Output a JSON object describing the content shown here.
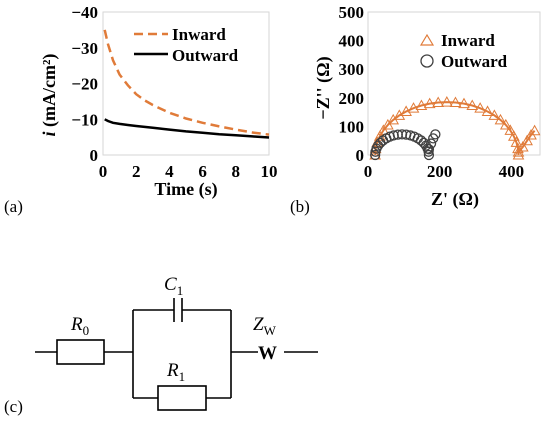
{
  "panels": {
    "a": "(a)",
    "b": "(b)",
    "c": "(c)"
  },
  "chart_data": [
    {
      "type": "line",
      "xlabel": "Time (s)",
      "ylabel_main": "i",
      "ylabel_unit": "(mA/cm²)",
      "xlim": [
        0,
        10
      ],
      "ylim": [
        0,
        -40
      ],
      "y_reversed": true,
      "x_ticks": [
        0,
        2,
        4,
        6,
        8,
        10
      ],
      "y_ticks": [
        -40,
        -30,
        -20,
        -10,
        0
      ],
      "y_tick_labels": [
        "−40",
        "−30",
        "−20",
        "−10",
        "0"
      ],
      "grid": false,
      "legend": "top-right",
      "series": [
        {
          "name": "Inward",
          "color": "#E07B39",
          "style": "dashed",
          "x": [
            0.1,
            0.3,
            0.6,
            1,
            1.5,
            2,
            2.5,
            3,
            4,
            5,
            6,
            7,
            8,
            9,
            10
          ],
          "y": [
            -35,
            -31,
            -26.5,
            -22.5,
            -19.5,
            -17,
            -15.3,
            -14,
            -11.8,
            -10.2,
            -9,
            -8,
            -7.1,
            -6.3,
            -5.7
          ]
        },
        {
          "name": "Outward",
          "color": "#000000",
          "style": "solid",
          "x": [
            0.1,
            0.3,
            0.6,
            1,
            1.5,
            2,
            3,
            4,
            5,
            6,
            7,
            8,
            9,
            10
          ],
          "y": [
            -10,
            -9.5,
            -9,
            -8.7,
            -8.4,
            -8.1,
            -7.6,
            -7.1,
            -6.6,
            -6.2,
            -5.8,
            -5.5,
            -5.2,
            -4.9
          ]
        }
      ]
    },
    {
      "type": "scatter",
      "xlabel": "Z' (Ω)",
      "ylabel": "−Z'' (Ω)",
      "xlim": [
        0,
        480
      ],
      "ylim": [
        0,
        500
      ],
      "x_ticks": [
        0,
        200,
        400
      ],
      "y_ticks": [
        0,
        100,
        200,
        300,
        400,
        500
      ],
      "grid": false,
      "legend": "top-right",
      "series": [
        {
          "name": "Inward",
          "marker": "triangle",
          "color": "#E07B39",
          "fit_line": true,
          "arc": {
            "x_start": 20,
            "x_end": 420,
            "peak": 185
          },
          "tail": [
            [
              420,
              10
            ],
            [
              432,
              28
            ],
            [
              444,
              50
            ],
            [
              455,
              70
            ],
            [
              465,
              85
            ]
          ]
        },
        {
          "name": "Outward",
          "marker": "circle",
          "color": "#404040",
          "fit_line": false,
          "arc": {
            "x_start": 20,
            "x_end": 170,
            "peak": 72
          },
          "tail": [
            [
              170,
              20
            ],
            [
              176,
              40
            ],
            [
              182,
              58
            ],
            [
              188,
              72
            ]
          ]
        }
      ]
    }
  ],
  "circuit": {
    "r0": {
      "main": "R",
      "sub": "0"
    },
    "c1": {
      "main": "C",
      "sub": "1"
    },
    "r1": {
      "main": "R",
      "sub": "1"
    },
    "zw": {
      "main": "Z",
      "sub": "W"
    },
    "w": "W"
  }
}
